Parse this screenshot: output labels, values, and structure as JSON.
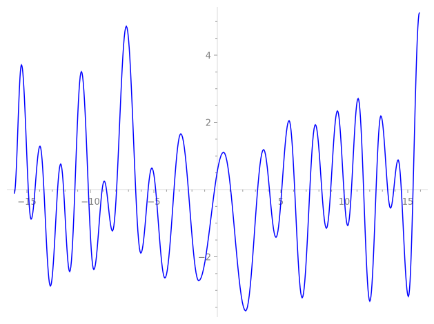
{
  "chart_data": {
    "type": "line",
    "title": "",
    "xlabel": "",
    "ylabel": "",
    "xlim": [
      -16,
      16
    ],
    "ylim": [
      -3.7,
      5.4
    ],
    "grid": false,
    "line_color": "#0000ff",
    "axis_color": "#e6e6e6",
    "tick_label_color": "#808080",
    "x_ticks": [
      -15,
      -10,
      -5,
      5,
      10,
      15
    ],
    "x_tick_labels": [
      "−15",
      "−10",
      "−5",
      "5",
      "10",
      "15"
    ],
    "y_ticks": [
      -2,
      2,
      4
    ],
    "y_tick_labels": [
      "−2",
      "2",
      "4"
    ],
    "series": [
      {
        "x": [
          -16,
          -15.43,
          -14.67,
          -13.97,
          -13.15,
          -12.34,
          -11.63,
          -10.71,
          -9.73,
          -8.91,
          -8.26,
          -7.17,
          -6.03,
          -5.16,
          -4.13,
          -2.88,
          -1.47,
          0.49,
          2.23,
          3.64,
          4.62,
          5.65,
          6.68,
          7.72,
          8.59,
          9.46,
          10.27,
          11.09,
          12.01,
          12.88,
          13.64,
          14.24,
          15.05,
          15.92
        ],
        "y": [
          -0.12,
          3.71,
          -0.88,
          1.29,
          -2.87,
          0.76,
          -2.44,
          3.51,
          -2.38,
          0.25,
          -1.23,
          4.86,
          -1.89,
          0.64,
          -2.63,
          1.66,
          -2.71,
          1.11,
          -3.61,
          1.19,
          -1.42,
          2.05,
          -3.22,
          1.93,
          -1.15,
          2.34,
          -1.07,
          2.71,
          -3.32,
          2.19,
          -0.55,
          0.88,
          -3.18,
          5.27
        ]
      }
    ]
  }
}
